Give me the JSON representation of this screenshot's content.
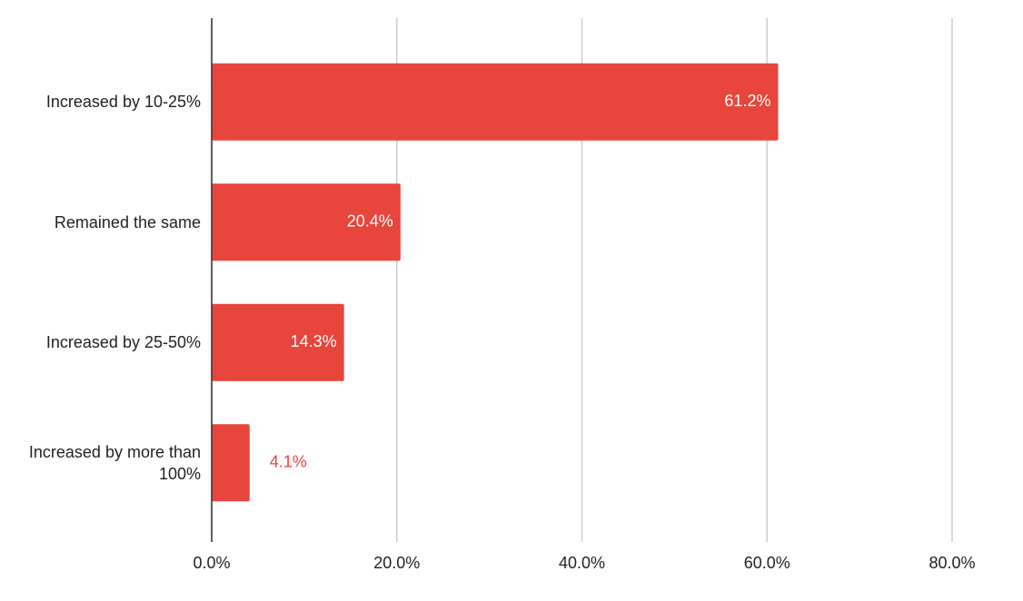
{
  "chart_data": {
    "type": "bar",
    "orientation": "horizontal",
    "categories": [
      "Increased by 10-25%",
      "Remained the same",
      "Increased by 25-50%",
      "Increased by more than 100%"
    ],
    "values": [
      61.2,
      20.4,
      14.3,
      4.1
    ],
    "value_labels": [
      "61.2%",
      "20.4%",
      "14.3%",
      "4.1%"
    ],
    "color": "#e8453c",
    "xlim": [
      0,
      80
    ],
    "xticks": [
      {
        "value": 0,
        "label": "0.0%"
      },
      {
        "value": 20,
        "label": "20.0%"
      },
      {
        "value": 40,
        "label": "40.0%"
      },
      {
        "value": 60,
        "label": "60.0%"
      },
      {
        "value": 80,
        "label": "80.0%"
      }
    ],
    "grid": true
  }
}
